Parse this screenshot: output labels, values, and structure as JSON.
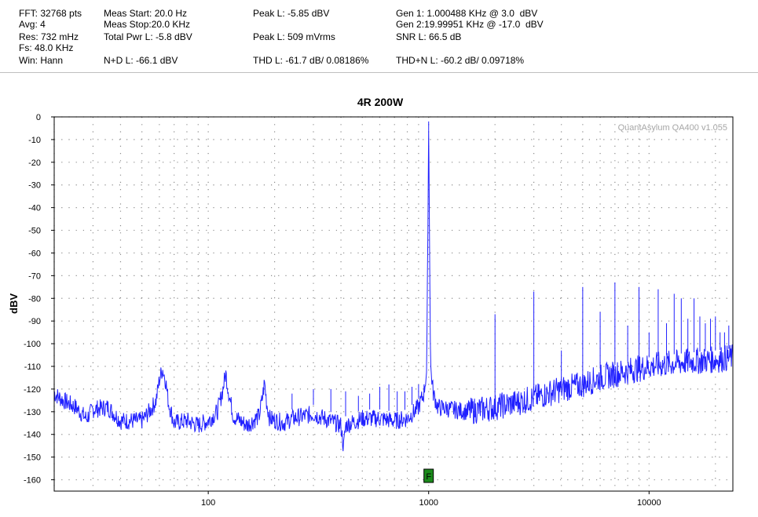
{
  "header": {
    "fft": "FFT: 32768 pts",
    "avg": "Avg: 4",
    "res": "Res: 732 mHz",
    "fs": "Fs: 48.0 KHz",
    "win": "Win: Hann",
    "meas_start": "Meas Start: 20.0 Hz",
    "meas_stop": "Meas Stop:20.0 KHz",
    "total_pwr": "Total Pwr L: -5.8 dBV",
    "nd": "N+D L: -66.1 dBV",
    "peak_dbv": "Peak L: -5.85 dBV",
    "peak_mv": "Peak L: 509 mVrms",
    "thd": "THD L: -61.7 dB/ 0.08186%",
    "gen1": "Gen 1: 1.000488 KHz @ 3.0  dBV",
    "gen2": "Gen 2:19.99951 KHz @ -17.0  dBV",
    "snr": "SNR L: 66.5 dB",
    "thdn": "THD+N L: -60.2 dB/ 0.09718%"
  },
  "colors": {
    "trace": "#2020ff",
    "marker_fill": "#1b8a1b"
  },
  "chart_data": {
    "type": "line",
    "title": "4R 200W",
    "ylabel": "dBV",
    "xlabel": "",
    "x_scale": "log",
    "xlim": [
      20,
      24000
    ],
    "ylim": [
      -165,
      0
    ],
    "x_ticks": [
      100,
      1000,
      10000
    ],
    "x_tick_labels": [
      "100",
      "1000",
      "10000"
    ],
    "y_ticks": [
      0,
      -10,
      -20,
      -30,
      -40,
      -50,
      -60,
      -70,
      -80,
      -90,
      -100,
      -110,
      -120,
      -130,
      -140,
      -150,
      -160
    ],
    "y_tick_labels": [
      "0",
      "-10",
      "-20",
      "-30",
      "-40",
      "-50",
      "-60",
      "-70",
      "-80",
      "-90",
      "-100",
      "-110",
      "-120",
      "-130",
      "-140",
      "-150",
      "-160"
    ],
    "grid": "dotted",
    "watermark": "QuantAsylum QA400 v1.055",
    "marker": {
      "label": "F",
      "x": 1000
    },
    "series": [
      {
        "values": [
          [
            20,
            -122
          ],
          [
            22,
            -125
          ],
          [
            25,
            -128
          ],
          [
            28,
            -133
          ],
          [
            30,
            -129
          ],
          [
            35,
            -128
          ],
          [
            40,
            -134
          ],
          [
            50,
            -134
          ],
          [
            55,
            -129
          ],
          [
            58,
            -125
          ],
          [
            60,
            -116
          ],
          [
            62,
            -111
          ],
          [
            64,
            -116
          ],
          [
            66,
            -126
          ],
          [
            70,
            -135
          ],
          [
            80,
            -134
          ],
          [
            90,
            -136
          ],
          [
            100,
            -134
          ],
          [
            110,
            -130
          ],
          [
            116,
            -121
          ],
          [
            120,
            -113
          ],
          [
            124,
            -122
          ],
          [
            130,
            -132
          ],
          [
            150,
            -136
          ],
          [
            170,
            -132
          ],
          [
            176,
            -124
          ],
          [
            180,
            -117
          ],
          [
            184,
            -126
          ],
          [
            190,
            -133
          ],
          [
            220,
            -135
          ],
          [
            240,
            -133
          ],
          [
            300,
            -131
          ],
          [
            400,
            -136
          ],
          [
            411,
            -146
          ],
          [
            420,
            -136
          ],
          [
            500,
            -133
          ],
          [
            600,
            -133
          ],
          [
            700,
            -134
          ],
          [
            800,
            -133
          ],
          [
            900,
            -128
          ],
          [
            950,
            -122
          ],
          [
            980,
            -112
          ],
          [
            1000,
            -6
          ],
          [
            1020,
            -110
          ],
          [
            1050,
            -122
          ],
          [
            1100,
            -128
          ],
          [
            1500,
            -130
          ],
          [
            2000,
            -128
          ],
          [
            2500,
            -126
          ],
          [
            3000,
            -124
          ],
          [
            4000,
            -120
          ],
          [
            5000,
            -118
          ],
          [
            6000,
            -115
          ],
          [
            8000,
            -112
          ],
          [
            10000,
            -110
          ],
          [
            12000,
            -109
          ],
          [
            15000,
            -108
          ],
          [
            20000,
            -107
          ],
          [
            24000,
            -106
          ]
        ]
      }
    ],
    "harmonic_spikes": [
      [
        2000,
        -87
      ],
      [
        3000,
        -77
      ],
      [
        4000,
        -103
      ],
      [
        5000,
        -75
      ],
      [
        6000,
        -86
      ],
      [
        7000,
        -73
      ],
      [
        8000,
        -92
      ],
      [
        9000,
        -75
      ],
      [
        10000,
        -95
      ],
      [
        11000,
        -76
      ],
      [
        12000,
        -91
      ],
      [
        13000,
        -78
      ],
      [
        14000,
        -80
      ],
      [
        15000,
        -89
      ],
      [
        16000,
        -80
      ],
      [
        17000,
        -88
      ],
      [
        18000,
        -91
      ],
      [
        19000,
        -89
      ],
      [
        20000,
        -88
      ],
      [
        21000,
        -95
      ],
      [
        22000,
        -95
      ],
      [
        23000,
        -92
      ]
    ],
    "low_spikes": [
      [
        240,
        -122
      ],
      [
        300,
        -120
      ],
      [
        360,
        -120
      ],
      [
        420,
        -121
      ],
      [
        480,
        -123
      ],
      [
        540,
        -122
      ],
      [
        600,
        -119
      ],
      [
        660,
        -118
      ],
      [
        720,
        -121
      ],
      [
        780,
        -121
      ],
      [
        840,
        -119
      ],
      [
        900,
        -118
      ]
    ]
  }
}
